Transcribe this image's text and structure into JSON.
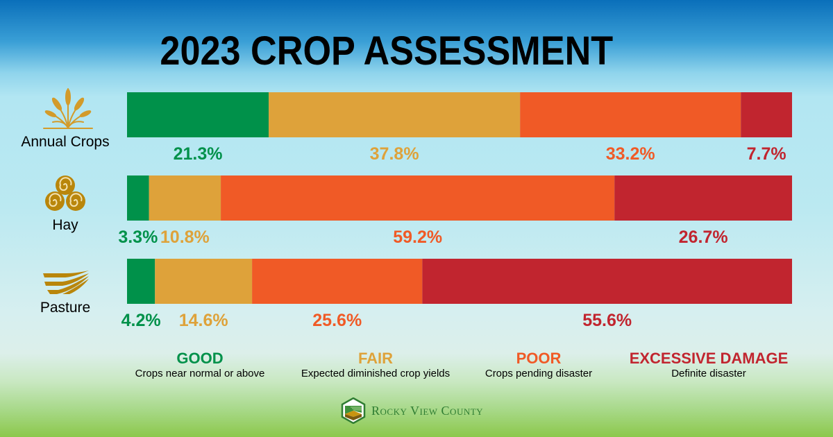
{
  "title": "2023 CROP ASSESSMENT",
  "colors": {
    "good": "#00914a",
    "fair": "#dea23a",
    "poor": "#f05a26",
    "excessive": "#c1252f"
  },
  "rows": [
    {
      "name": "Annual Crops",
      "icon": "wheat-icon"
    },
    {
      "name": "Hay",
      "icon": "hay-bales-icon"
    },
    {
      "name": "Pasture",
      "icon": "pasture-field-icon"
    }
  ],
  "legend": [
    {
      "key": "good",
      "title": "GOOD",
      "desc": "Crops near normal or above"
    },
    {
      "key": "fair",
      "title": "FAIR",
      "desc": "Expected diminished crop yields"
    },
    {
      "key": "poor",
      "title": "POOR",
      "desc": "Crops pending disaster"
    },
    {
      "key": "excessive",
      "title": "EXCESSIVE DAMAGE",
      "desc": "Definite disaster"
    }
  ],
  "logo": {
    "icon": "rocky-view-county-logo-icon",
    "text": "Rocky View County"
  },
  "chart_data": {
    "type": "bar",
    "orientation": "horizontal",
    "stacked": true,
    "title": "2023 CROP ASSESSMENT",
    "categories": [
      "Annual Crops",
      "Hay",
      "Pasture"
    ],
    "series": [
      {
        "name": "GOOD",
        "key": "good",
        "values": [
          21.3,
          3.3,
          4.2
        ],
        "labels": [
          "21.3%",
          "3.3%",
          "4.2%"
        ]
      },
      {
        "name": "FAIR",
        "key": "fair",
        "values": [
          37.8,
          10.8,
          14.6
        ],
        "labels": [
          "37.8%",
          "10.8%",
          "14.6%"
        ]
      },
      {
        "name": "POOR",
        "key": "poor",
        "values": [
          33.2,
          59.2,
          25.6
        ],
        "labels": [
          "33.2%",
          "59.2%",
          "25.6%"
        ]
      },
      {
        "name": "EXCESSIVE DAMAGE",
        "key": "excessive",
        "values": [
          7.7,
          26.7,
          55.6
        ],
        "labels": [
          "7.7%",
          "26.7%",
          "55.6%"
        ]
      }
    ],
    "xlim": [
      0,
      100
    ],
    "unit": "%",
    "grid": false,
    "legend_position": "bottom"
  }
}
